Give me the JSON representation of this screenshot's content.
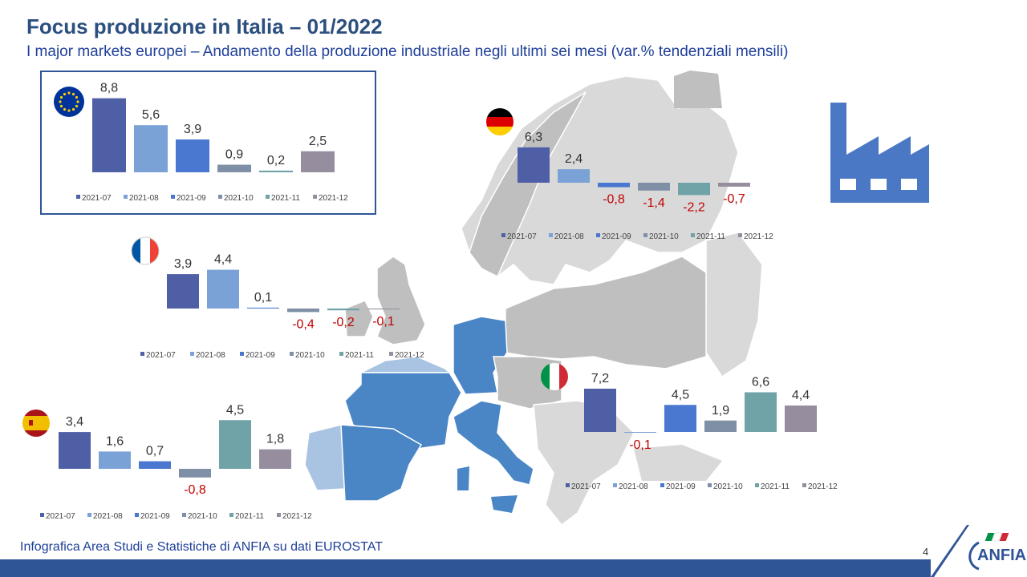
{
  "title": "Focus produzione in Italia – 01/2022",
  "subtitle": "I major markets europei – Andamento della produzione industriale negli ultimi sei mesi (var.% tendenziali mensili)",
  "footer": "Infografica Area Studi e Statistiche di ANFIA su dati EUROSTAT",
  "page_number": "4",
  "logo_text": "ANFIA",
  "colors": {
    "series": [
      "#4f5fa6",
      "#7aa2d6",
      "#4a78d0",
      "#7f8fa6",
      "#6fa3a8",
      "#968d9e"
    ],
    "negative_label": "#c00000",
    "title": "#2b4f7e",
    "accent": "#2f5597"
  },
  "icons": {
    "factory": "factory-icon",
    "eu": "eu-flag-icon",
    "de": "germany-flag-icon",
    "fr": "france-flag-icon",
    "it": "italy-flag-icon",
    "es": "spain-flag-icon"
  },
  "chart_data": [
    {
      "id": "eu",
      "type": "bar",
      "region_icon": "eu-flag-icon",
      "categories": [
        "2021-07",
        "2021-08",
        "2021-09",
        "2021-10",
        "2021-11",
        "2021-12"
      ],
      "values": [
        8.8,
        5.6,
        3.9,
        0.9,
        0.2,
        2.5
      ],
      "labels": [
        "8,8",
        "5,6",
        "3,9",
        "0,9",
        "0,2",
        "2,5"
      ],
      "legend": [
        "2021-07",
        "2021-08",
        "2021-09",
        "2021-10",
        "2021-11",
        "2021-12"
      ],
      "legend_placement": "bottom"
    },
    {
      "id": "de",
      "type": "bar",
      "region_icon": "germany-flag-icon",
      "categories": [
        "2021-07",
        "2021-08",
        "2021-09",
        "2021-10",
        "2021-11",
        "2021-12"
      ],
      "values": [
        6.3,
        2.4,
        -0.8,
        -1.4,
        -2.2,
        -0.7
      ],
      "labels": [
        "6,3",
        "2,4",
        "-0,8",
        "-1,4",
        "-2,2",
        "-0,7"
      ],
      "legend": [
        "2021-07",
        "2021-08",
        "2021-09",
        "2021-10",
        "2021-11",
        "2021-12"
      ],
      "legend_placement": "bottom"
    },
    {
      "id": "fr",
      "type": "bar",
      "region_icon": "france-flag-icon",
      "categories": [
        "2021-07",
        "2021-08",
        "2021-09",
        "2021-10",
        "2021-11",
        "2021-12"
      ],
      "values": [
        3.9,
        4.4,
        0.1,
        -0.4,
        -0.2,
        -0.1
      ],
      "labels": [
        "3,9",
        "4,4",
        "0,1",
        "-0,4",
        "-0,2",
        "-0,1"
      ],
      "legend": [
        "2021-07",
        "2021-08",
        "2021-09",
        "2021-10",
        "2021-11",
        "2021-12"
      ],
      "legend_placement": "bottom"
    },
    {
      "id": "it",
      "type": "bar",
      "region_icon": "italy-flag-icon",
      "categories": [
        "2021-07",
        "2021-08",
        "2021-09",
        "2021-10",
        "2021-11",
        "2021-12"
      ],
      "values": [
        7.2,
        -0.1,
        4.5,
        1.9,
        6.6,
        4.4
      ],
      "labels": [
        "7,2",
        "-0,1",
        "4,5",
        "1,9",
        "6,6",
        "4,4"
      ],
      "legend": [
        "2021-07",
        "2021-08",
        "2021-09",
        "2021-10",
        "2021-11",
        "2021-12"
      ],
      "legend_placement": "bottom"
    },
    {
      "id": "es",
      "type": "bar",
      "region_icon": "spain-flag-icon",
      "categories": [
        "2021-07",
        "2021-08",
        "2021-09",
        "2021-10",
        "2021-11",
        "2021-12"
      ],
      "values": [
        3.4,
        1.6,
        0.7,
        -0.8,
        4.5,
        1.8
      ],
      "labels": [
        "3,4",
        "1,6",
        "0,7",
        "-0,8",
        "4,5",
        "1,8"
      ],
      "legend": [
        "2021-07",
        "2021-08",
        "2021-09",
        "2021-10",
        "2021-11",
        "2021-12"
      ],
      "legend_placement": "bottom"
    }
  ]
}
